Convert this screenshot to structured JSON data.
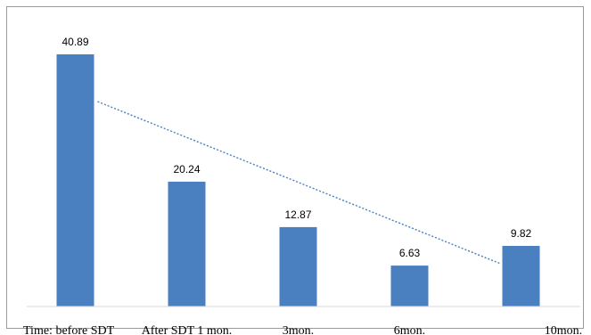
{
  "chart_data": {
    "type": "bar",
    "categories": [
      "Time:  before SDT",
      "After SDT 1 mon.",
      "3mon.",
      "6mon.",
      "10mon."
    ],
    "values": [
      40.89,
      20.24,
      12.87,
      6.63,
      9.82
    ],
    "data_labels": [
      "40.89",
      "20.24",
      "12.87",
      "6.63",
      "9.82"
    ],
    "title": "",
    "xlabel": "",
    "ylabel": "",
    "ylim": [
      0,
      45
    ],
    "grid": false,
    "legend": "none",
    "trendline": {
      "type": "linear",
      "style": "dotted",
      "from_category": 0,
      "to_category": 4
    },
    "colors": {
      "bar": "#4a7fc0",
      "trendline": "#4a7fc0",
      "axis": "#d9d9d9",
      "frame": "#9a9a9a"
    }
  }
}
